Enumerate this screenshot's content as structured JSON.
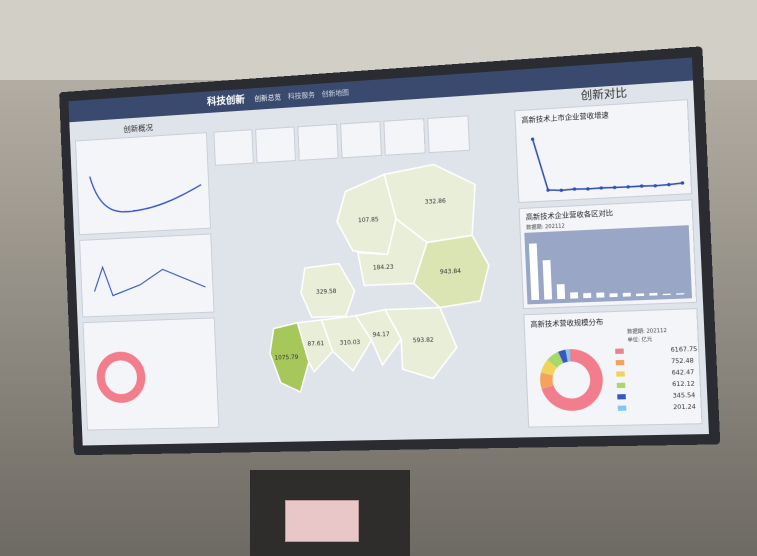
{
  "screen": {
    "brand": "科技创新",
    "tabs": [
      "创新总览",
      "科技服务",
      "创新地图"
    ],
    "left_title": "创新概况",
    "right_title": "创新对比"
  },
  "map": {
    "regions": [
      332.86,
      107.85,
      184.23,
      943.84,
      329.58,
      1075.79,
      87.61,
      310.03,
      94.17,
      593.82
    ]
  },
  "growth_chart": {
    "title": "高新技术上市企业营收增速",
    "values": [
      600,
      30,
      20,
      25,
      20,
      22,
      20,
      18,
      20,
      15,
      20,
      30
    ],
    "ylim": [
      0,
      700
    ],
    "color": "#2f4fb5"
  },
  "district_chart": {
    "title": "高新技术企业营收各区对比",
    "period": "数据期: 202112",
    "values": [
      46,
      32,
      12,
      5,
      4,
      4,
      3,
      3,
      2,
      2,
      1,
      1
    ],
    "ylim": [
      0,
      50
    ],
    "color": "#ffffff"
  },
  "scale_chart": {
    "title": "高新技术营收规模分布",
    "period": "数据期: 202112",
    "unit": "单位: 亿元",
    "values": [
      6167.75,
      752.48,
      642.47,
      612.12,
      345.54,
      201.24
    ],
    "colors": [
      "#f27d8c",
      "#f5a25d",
      "#f2d35a",
      "#a6d96a",
      "#3a56c4",
      "#7ec8f2"
    ]
  }
}
